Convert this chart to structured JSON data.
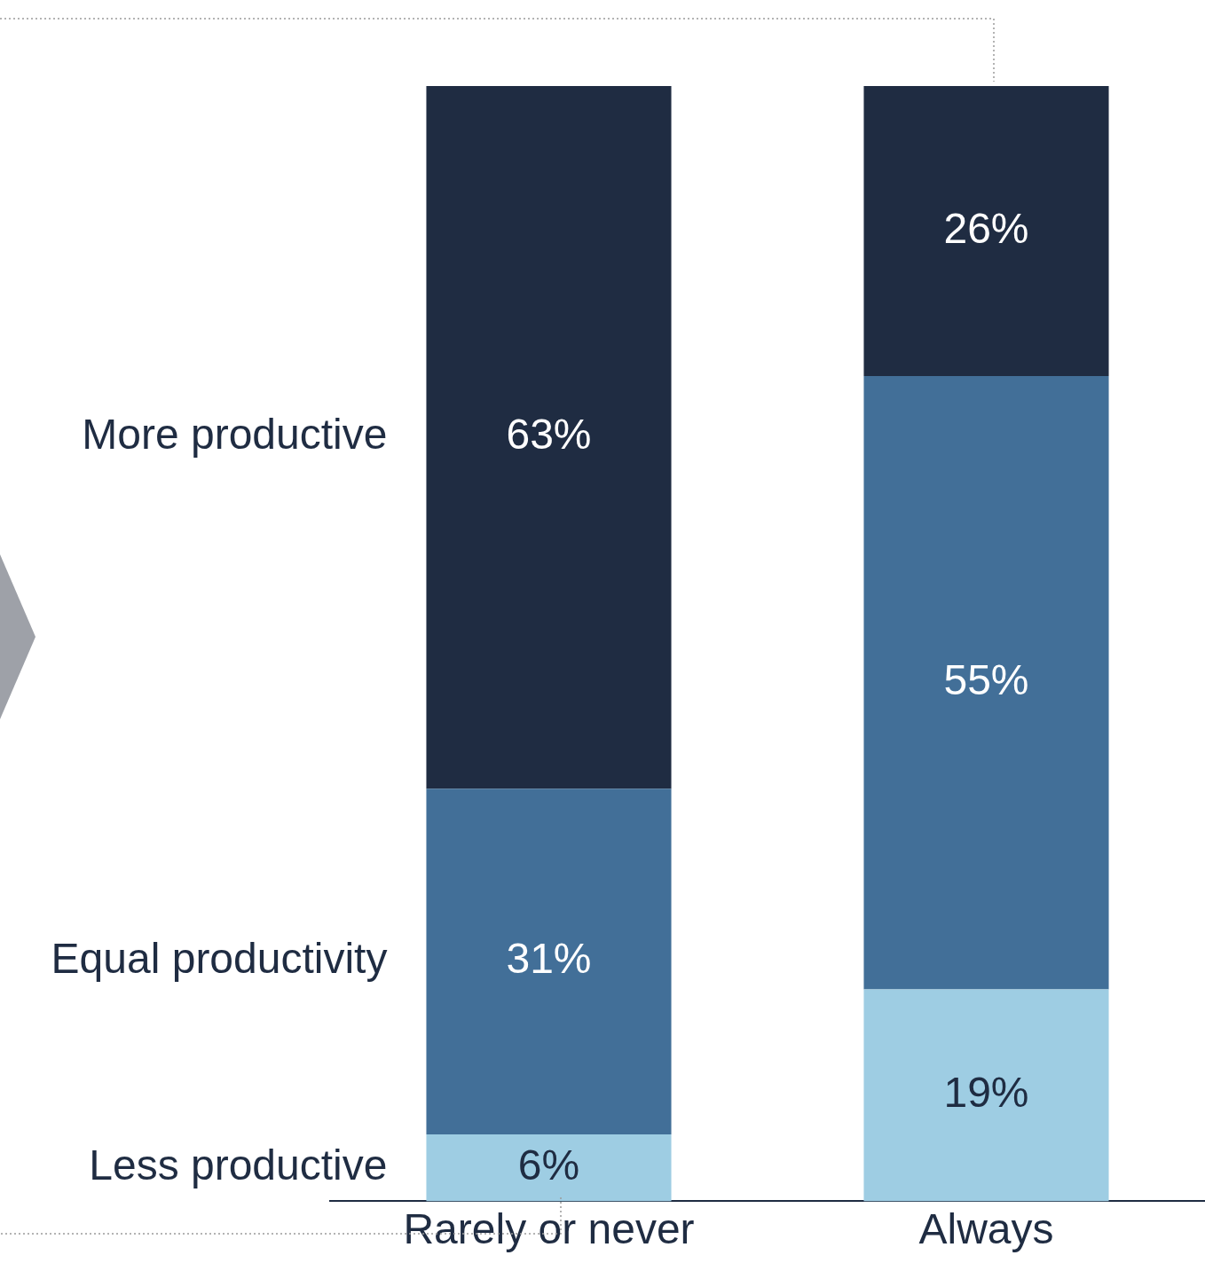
{
  "chart_data": {
    "type": "bar",
    "stacked": true,
    "categories": [
      "Rarely or never",
      "Always"
    ],
    "series": [
      {
        "name": "Less productive",
        "color": "#9ecde3",
        "values": [
          6,
          19
        ],
        "value_labels": [
          "6%",
          "19%"
        ]
      },
      {
        "name": "Equal productivity",
        "color": "#426f98",
        "values": [
          31,
          55
        ],
        "value_labels": [
          "31%",
          "55%"
        ]
      },
      {
        "name": "More productive",
        "color": "#1f2c42",
        "values": [
          63,
          26
        ],
        "value_labels": [
          "63%",
          "26%"
        ]
      }
    ],
    "ylim": [
      0,
      100
    ],
    "tick_labels": "x",
    "grid": false
  }
}
